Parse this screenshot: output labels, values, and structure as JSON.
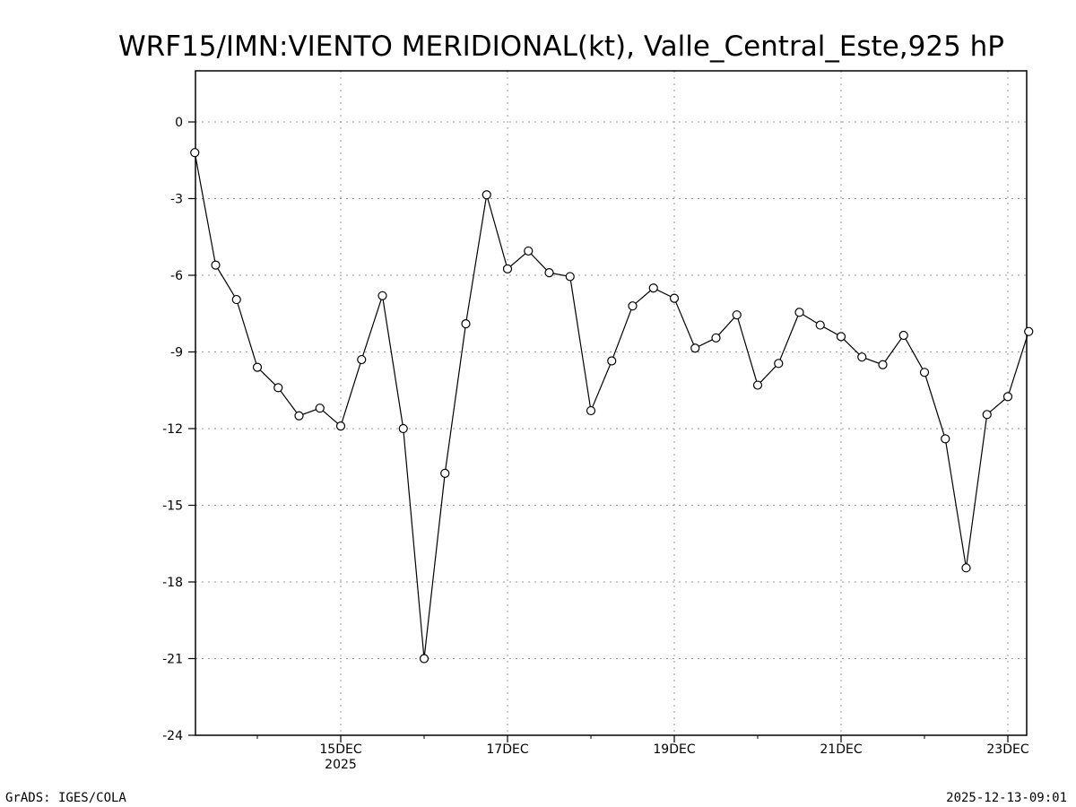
{
  "chart_data": {
    "type": "line",
    "title": "WRF15/IMN:VIENTO MERIDIONAL(kt), Valle_Central_Este,925 hP",
    "xlabel": "",
    "ylabel": "",
    "ylim": [
      -24,
      2
    ],
    "yticks": [
      0,
      -3,
      -6,
      -9,
      -12,
      -15,
      -18,
      -21,
      -24
    ],
    "ytick_labels": [
      "0",
      "-3",
      "-6",
      "-9",
      "-12",
      "-15",
      "-18",
      "-21",
      "-24"
    ],
    "xticks": [
      {
        "day": 15,
        "label": "15DEC",
        "sublabel": "2025"
      },
      {
        "day": 17,
        "label": "17DEC"
      },
      {
        "day": 19,
        "label": "19DEC"
      },
      {
        "day": 21,
        "label": "21DEC"
      },
      {
        "day": 23,
        "label": "23DEC"
      }
    ],
    "xlim_days": [
      13.25,
      23.25
    ],
    "x_step_hours": 6,
    "x_start_day": 13.25,
    "grid": true,
    "series": [
      {
        "name": "VIENTO MERIDIONAL",
        "marker": "open-circle",
        "values": [
          -1.2,
          -5.6,
          -6.95,
          -9.6,
          -10.4,
          -11.5,
          -11.2,
          -11.9,
          -9.3,
          -6.8,
          -12.0,
          -21.0,
          -13.75,
          -7.9,
          -2.85,
          -5.75,
          -5.05,
          -5.9,
          -6.05,
          -11.3,
          -9.35,
          -7.2,
          -6.5,
          -6.9,
          -8.85,
          -8.45,
          -7.55,
          -10.3,
          -9.45,
          -7.45,
          -7.95,
          -8.4,
          -9.2,
          -9.5,
          -8.35,
          -9.8,
          -12.4,
          -17.45,
          -11.45,
          -10.75,
          -8.2
        ]
      }
    ]
  },
  "footer": {
    "left": "GrADS: IGES/COLA",
    "right": "2025-12-13-09:01"
  }
}
